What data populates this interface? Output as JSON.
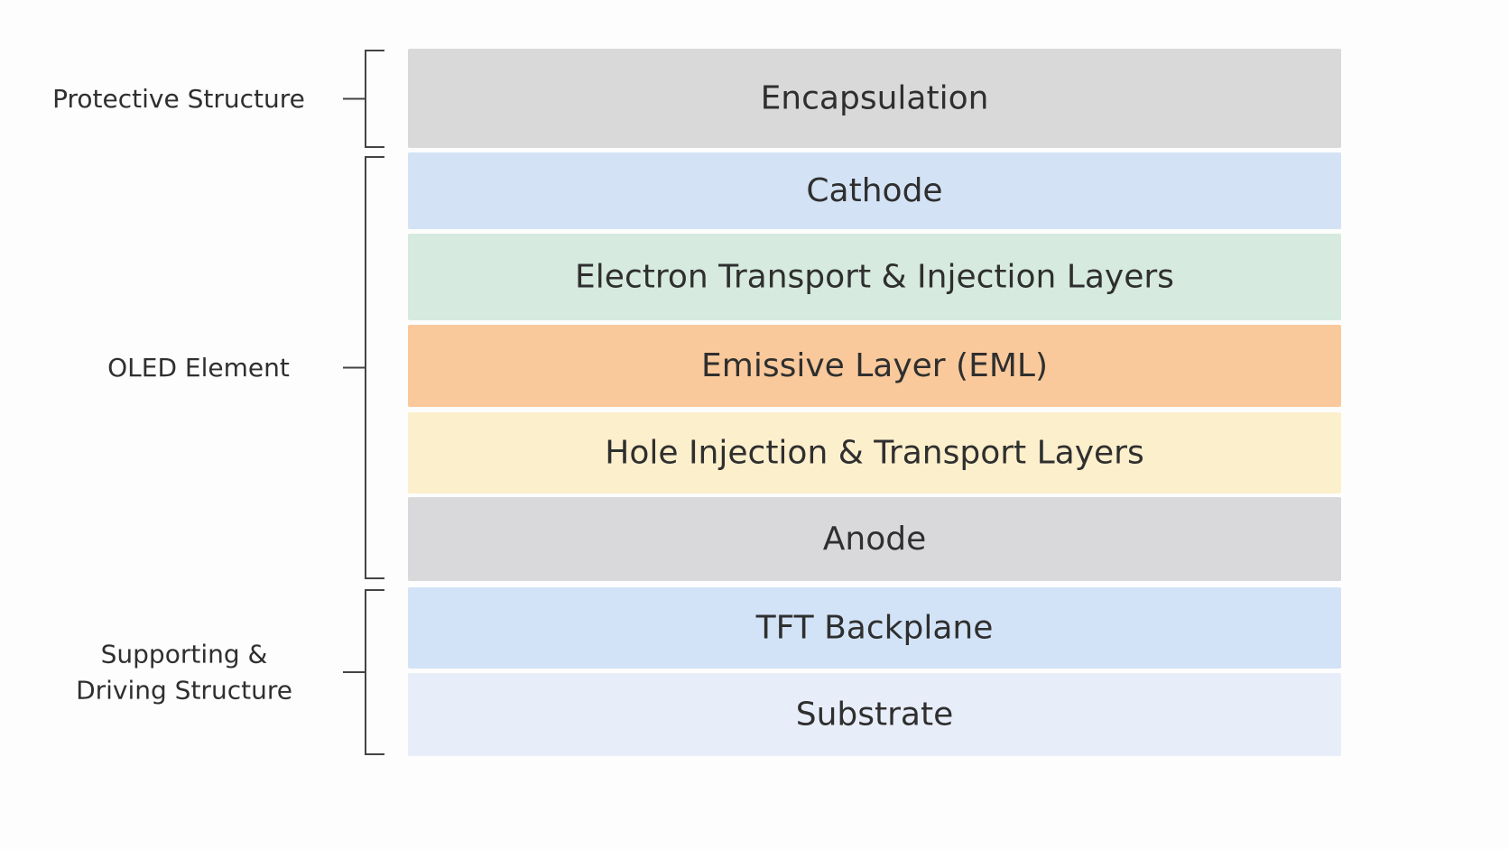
{
  "layers": [
    {
      "label": "Encapsulation",
      "color": "#d9d9d9"
    },
    {
      "label": "Cathode",
      "color": "#d3e3f5"
    },
    {
      "label": "Electron Transport & Injection Layers",
      "color": "#d6eadf"
    },
    {
      "label": "Emissive Layer (EML)",
      "color": "#f9c99b"
    },
    {
      "label": "Hole Injection & Transport Layers",
      "color": "#fcefcc"
    },
    {
      "label": "Anode",
      "color": "#d9d9db"
    },
    {
      "label": "TFT Backplane",
      "color": "#d3e3f7"
    },
    {
      "label": "Substrate",
      "color": "#e8eef9"
    }
  ],
  "groups": [
    {
      "lines": [
        "Protective Structure"
      ]
    },
    {
      "lines": [
        "OLED Element"
      ]
    },
    {
      "lines": [
        "Supporting &",
        "Driving Structure"
      ]
    }
  ]
}
